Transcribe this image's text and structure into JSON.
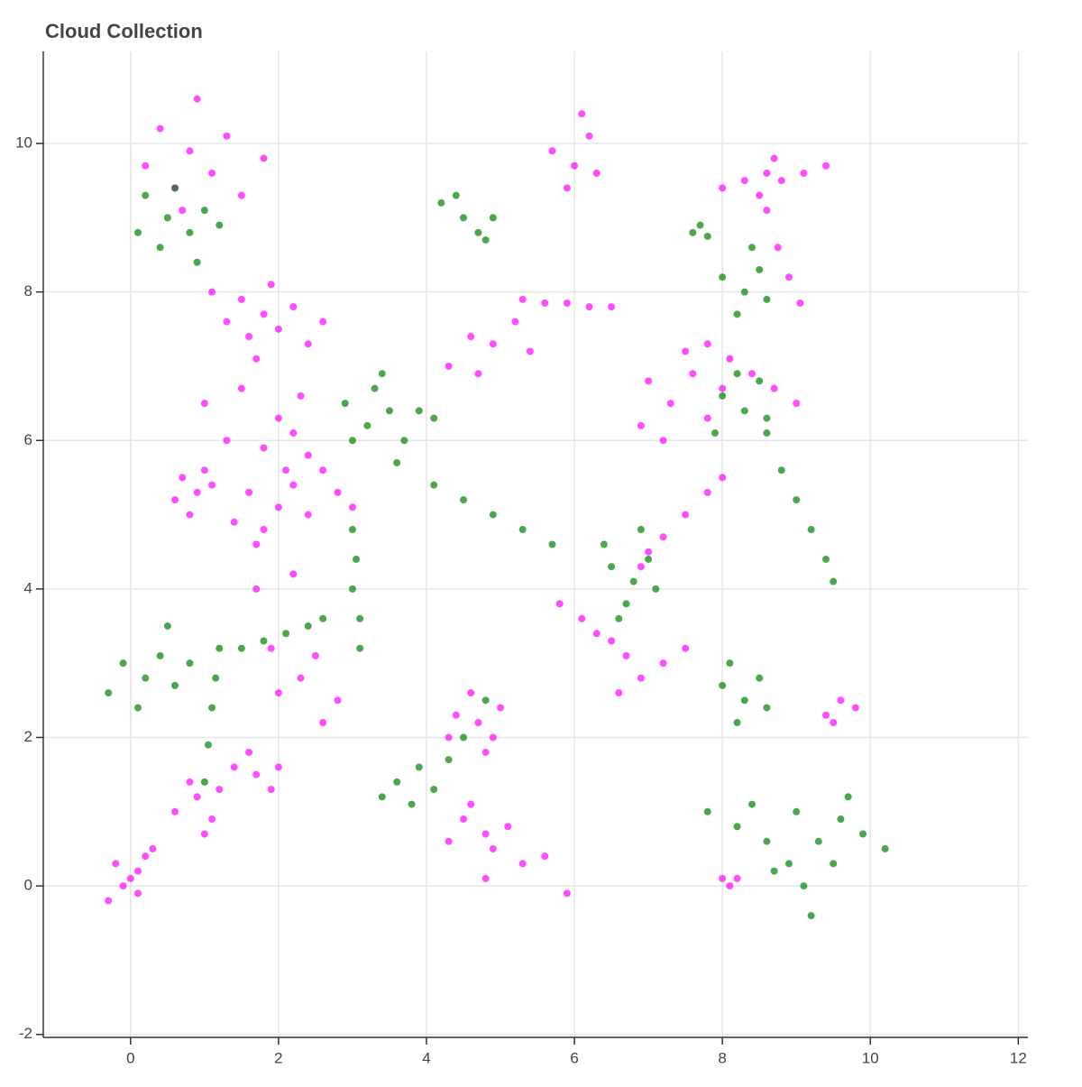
{
  "chart_data": {
    "type": "scatter",
    "title": "Cloud Collection",
    "xlim": [
      -1.18,
      12.13
    ],
    "ylim": [
      -2.04,
      11.24
    ],
    "xticks": [
      0,
      2,
      4,
      6,
      8,
      10,
      12
    ],
    "yticks": [
      -2,
      0,
      2,
      4,
      6,
      8,
      10
    ],
    "grid": true,
    "series": [
      {
        "color": "#ff00ff",
        "x": [
          0.4,
          0.8,
          1.1,
          0.6,
          1.3,
          0.2,
          1.5,
          0.9,
          0.7,
          1.8,
          1.5,
          1.8,
          2.0,
          1.6,
          2.2,
          1.3,
          1.9,
          2.4,
          1.1,
          2.6,
          1.7,
          1.0,
          1.5,
          2.0,
          1.3,
          1.8,
          2.3,
          0.7,
          0.9,
          1.0,
          0.6,
          0.8,
          1.1,
          1.6,
          2.0,
          2.2,
          1.8,
          2.4,
          1.4,
          2.1,
          1.7,
          2.2,
          2.4,
          2.6,
          2.8,
          3.0,
          1.9,
          2.3,
          2.5,
          2.0,
          2.8,
          1.7,
          2.2,
          2.6,
          -0.3,
          -0.1,
          0.1,
          0.2,
          0.0,
          0.3,
          -0.2,
          0.1,
          0.6,
          0.9,
          1.1,
          0.8,
          1.2,
          1.0,
          1.4,
          1.7,
          1.9,
          1.6,
          2.0,
          4.4,
          4.7,
          4.9,
          4.6,
          5.0,
          4.8,
          4.3,
          4.5,
          4.8,
          5.1,
          4.9,
          4.6,
          5.3,
          4.3,
          5.6,
          4.8,
          5.9,
          4.3,
          4.6,
          4.9,
          5.2,
          4.7,
          5.4,
          5.3,
          5.6,
          5.9,
          6.2,
          6.5,
          5.7,
          6.0,
          6.2,
          5.9,
          6.3,
          6.1,
          8.0,
          8.3,
          8.6,
          8.8,
          9.1,
          8.5,
          9.4,
          8.7,
          8.6,
          8.75,
          8.9,
          9.05,
          7.0,
          7.3,
          7.6,
          7.8,
          7.2,
          7.5,
          6.9,
          8.0,
          7.8,
          8.1,
          8.4,
          8.7,
          9.0,
          7.0,
          7.2,
          7.5,
          7.8,
          8.0,
          6.9,
          5.8,
          6.1,
          6.3,
          6.5,
          6.7,
          6.6,
          6.9,
          7.2,
          7.5,
          9.4,
          9.6,
          9.8,
          9.5,
          8.0,
          8.1,
          8.2
        ],
        "y": [
          10.2,
          9.9,
          9.6,
          9.4,
          10.1,
          9.7,
          9.3,
          10.6,
          9.1,
          9.8,
          7.9,
          7.7,
          7.5,
          7.4,
          7.8,
          7.6,
          8.1,
          7.3,
          8.0,
          7.6,
          7.1,
          6.5,
          6.7,
          6.3,
          6.0,
          5.9,
          6.6,
          5.5,
          5.3,
          5.6,
          5.2,
          5.0,
          5.4,
          5.3,
          5.1,
          5.4,
          4.8,
          5.0,
          4.9,
          5.6,
          4.6,
          6.1,
          5.8,
          5.6,
          5.3,
          5.1,
          3.2,
          2.8,
          3.1,
          2.6,
          2.5,
          4.0,
          4.2,
          2.2,
          -0.2,
          0.0,
          0.2,
          0.4,
          0.1,
          0.5,
          0.3,
          -0.1,
          1.0,
          1.2,
          0.9,
          1.4,
          1.3,
          0.7,
          1.6,
          1.5,
          1.3,
          1.8,
          1.6,
          2.3,
          2.2,
          2.0,
          2.6,
          2.4,
          1.8,
          2.0,
          0.9,
          0.7,
          0.8,
          0.5,
          1.1,
          0.3,
          0.6,
          0.4,
          0.1,
          -0.1,
          7.0,
          7.4,
          7.3,
          7.6,
          6.9,
          7.2,
          7.9,
          7.85,
          7.85,
          7.8,
          7.8,
          9.9,
          9.7,
          10.1,
          9.4,
          9.6,
          10.4,
          9.4,
          9.5,
          9.6,
          9.5,
          9.6,
          9.3,
          9.7,
          9.8,
          9.1,
          8.6,
          8.2,
          7.85,
          6.8,
          6.5,
          6.9,
          6.3,
          6.0,
          7.2,
          6.2,
          6.7,
          7.3,
          7.1,
          6.9,
          6.7,
          6.5,
          4.5,
          4.7,
          5.0,
          5.3,
          5.5,
          4.3,
          3.8,
          3.6,
          3.4,
          3.3,
          3.1,
          2.6,
          2.8,
          3.0,
          3.2,
          2.3,
          2.5,
          2.4,
          2.2,
          0.1,
          0.0,
          0.1
        ]
      },
      {
        "color": "#008000",
        "x": [
          0.2,
          0.5,
          0.8,
          0.6,
          1.0,
          0.4,
          0.9,
          0.1,
          1.2,
          2.9,
          3.2,
          3.5,
          3.7,
          3.3,
          3.9,
          3.0,
          3.6,
          4.1,
          3.4,
          4.2,
          4.5,
          4.7,
          4.4,
          4.9,
          4.8,
          4.1,
          4.5,
          4.9,
          5.3,
          5.7,
          7.6,
          7.7,
          7.8,
          8.0,
          8.3,
          8.5,
          8.2,
          8.6,
          8.4,
          8.0,
          8.3,
          8.5,
          7.9,
          8.2,
          8.6,
          8.6,
          8.8,
          9.0,
          9.2,
          9.4,
          9.5,
          6.5,
          6.8,
          7.0,
          6.7,
          6.4,
          7.1,
          6.9,
          6.6,
          3.0,
          3.05,
          3.0,
          3.1,
          3.1,
          1.5,
          1.8,
          2.1,
          2.4,
          2.6,
          1.0,
          1.05,
          1.1,
          1.15,
          1.2,
          -0.1,
          0.2,
          0.4,
          0.6,
          0.1,
          0.5,
          -0.3,
          0.8,
          3.6,
          3.9,
          4.1,
          4.3,
          3.8,
          4.5,
          4.8,
          3.4,
          8.0,
          8.3,
          8.5,
          8.2,
          8.6,
          8.1,
          7.8,
          8.2,
          8.6,
          8.9,
          9.1,
          9.3,
          9.6,
          9.9,
          9.0,
          8.7,
          9.5,
          8.4,
          9.2,
          10.2,
          9.7
        ],
        "y": [
          9.3,
          9.0,
          8.8,
          9.4,
          9.1,
          8.6,
          8.4,
          8.8,
          8.9,
          6.5,
          6.2,
          6.4,
          6.0,
          6.7,
          6.4,
          6.0,
          5.7,
          6.3,
          6.9,
          9.2,
          9.0,
          8.8,
          9.3,
          9.0,
          8.7,
          5.4,
          5.2,
          5.0,
          4.8,
          4.6,
          8.8,
          8.9,
          8.75,
          8.2,
          8.0,
          8.3,
          7.7,
          7.9,
          8.6,
          6.6,
          6.4,
          6.8,
          6.1,
          6.9,
          6.3,
          6.1,
          5.6,
          5.2,
          4.8,
          4.4,
          4.1,
          4.3,
          4.1,
          4.4,
          3.8,
          4.6,
          4.0,
          4.8,
          3.6,
          4.8,
          4.4,
          4.0,
          3.6,
          3.2,
          3.2,
          3.3,
          3.4,
          3.5,
          3.6,
          1.4,
          1.9,
          2.4,
          2.8,
          3.2,
          3.0,
          2.8,
          3.1,
          2.7,
          2.4,
          3.5,
          2.6,
          3.0,
          1.4,
          1.6,
          1.3,
          1.7,
          1.1,
          2.0,
          2.5,
          1.2,
          2.7,
          2.5,
          2.8,
          2.2,
          2.4,
          3.0,
          1.0,
          0.8,
          0.6,
          0.3,
          0.0,
          0.6,
          0.9,
          0.7,
          1.0,
          0.2,
          0.3,
          1.1,
          -0.4,
          0.5,
          1.2
        ]
      }
    ]
  }
}
